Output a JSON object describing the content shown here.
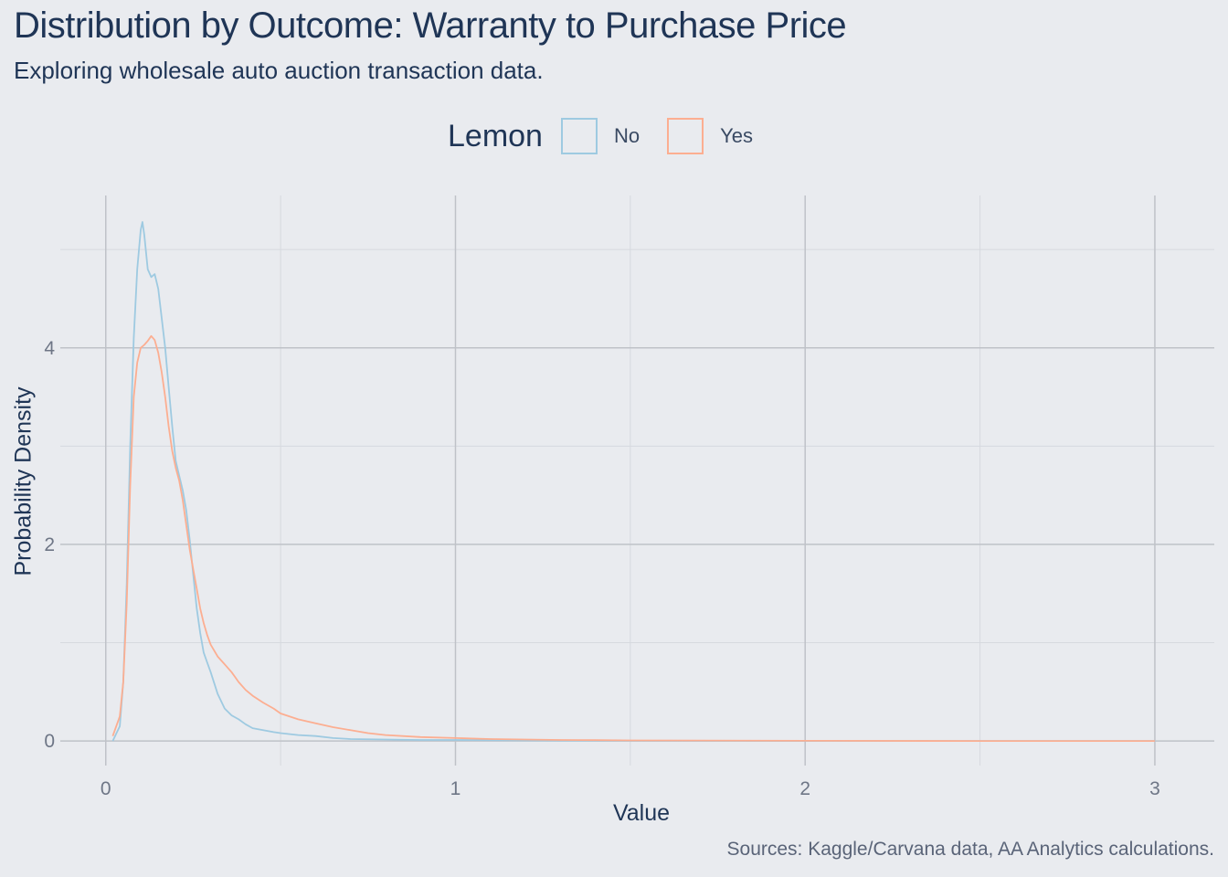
{
  "header": {
    "title": "Distribution by Outcome: Warranty to Purchase Price",
    "subtitle": "Exploring wholesale auto auction transaction data."
  },
  "legend": {
    "title": "Lemon",
    "items": [
      {
        "label": "No",
        "color": "#9ecae1"
      },
      {
        "label": "Yes",
        "color": "#fcae91"
      }
    ]
  },
  "caption": "Sources: Kaggle/Carvana data, AA Analytics calculations.",
  "chart_data": {
    "type": "line",
    "title": "Distribution by Outcome: Warranty to Purchase Price",
    "xlabel": "Value",
    "ylabel": "Probability Density",
    "xlim": [
      -0.13,
      3.17
    ],
    "ylim": [
      -0.25,
      5.55
    ],
    "xticks": [
      0,
      1,
      2,
      3
    ],
    "yticks": [
      0,
      2,
      4
    ],
    "grid": true,
    "legend_position": "top",
    "series": [
      {
        "name": "No",
        "color": "#9ecae1",
        "x": [
          0.02,
          0.04,
          0.05,
          0.06,
          0.07,
          0.08,
          0.09,
          0.1,
          0.105,
          0.11,
          0.12,
          0.13,
          0.14,
          0.15,
          0.16,
          0.17,
          0.18,
          0.19,
          0.2,
          0.21,
          0.22,
          0.23,
          0.24,
          0.25,
          0.26,
          0.27,
          0.28,
          0.29,
          0.3,
          0.32,
          0.34,
          0.36,
          0.38,
          0.4,
          0.42,
          0.45,
          0.48,
          0.5,
          0.55,
          0.6,
          0.65,
          0.7,
          0.8,
          0.9,
          1.0,
          1.1,
          1.2,
          1.3,
          1.4,
          1.5,
          2.0,
          2.5,
          3.0
        ],
        "y": [
          0.0,
          0.15,
          0.6,
          1.6,
          3.0,
          4.1,
          4.8,
          5.2,
          5.28,
          5.15,
          4.8,
          4.72,
          4.75,
          4.6,
          4.3,
          4.0,
          3.6,
          3.2,
          2.85,
          2.7,
          2.55,
          2.35,
          2.05,
          1.7,
          1.35,
          1.1,
          0.9,
          0.8,
          0.7,
          0.48,
          0.33,
          0.26,
          0.22,
          0.17,
          0.13,
          0.11,
          0.09,
          0.08,
          0.06,
          0.05,
          0.03,
          0.02,
          0.015,
          0.01,
          0.01,
          0.008,
          0.006,
          0.004,
          0.003,
          0.002,
          0.0,
          0.0,
          0.0
        ]
      },
      {
        "name": "Yes",
        "color": "#fcae91",
        "x": [
          0.02,
          0.04,
          0.05,
          0.06,
          0.07,
          0.08,
          0.09,
          0.1,
          0.11,
          0.12,
          0.13,
          0.14,
          0.15,
          0.16,
          0.17,
          0.18,
          0.19,
          0.2,
          0.21,
          0.22,
          0.23,
          0.24,
          0.25,
          0.26,
          0.27,
          0.28,
          0.29,
          0.3,
          0.32,
          0.34,
          0.36,
          0.38,
          0.4,
          0.42,
          0.45,
          0.48,
          0.5,
          0.55,
          0.6,
          0.65,
          0.7,
          0.75,
          0.8,
          0.9,
          1.0,
          1.1,
          1.2,
          1.3,
          1.4,
          1.5,
          2.0,
          2.5,
          3.0
        ],
        "y": [
          0.05,
          0.25,
          0.6,
          1.4,
          2.6,
          3.5,
          3.85,
          4.0,
          4.03,
          4.07,
          4.12,
          4.08,
          3.95,
          3.75,
          3.5,
          3.2,
          2.95,
          2.78,
          2.65,
          2.45,
          2.2,
          1.95,
          1.75,
          1.55,
          1.35,
          1.2,
          1.08,
          0.98,
          0.86,
          0.78,
          0.7,
          0.6,
          0.52,
          0.46,
          0.39,
          0.33,
          0.28,
          0.22,
          0.18,
          0.14,
          0.11,
          0.08,
          0.06,
          0.04,
          0.03,
          0.02,
          0.015,
          0.01,
          0.008,
          0.006,
          0.002,
          0.0,
          0.0
        ]
      }
    ]
  }
}
